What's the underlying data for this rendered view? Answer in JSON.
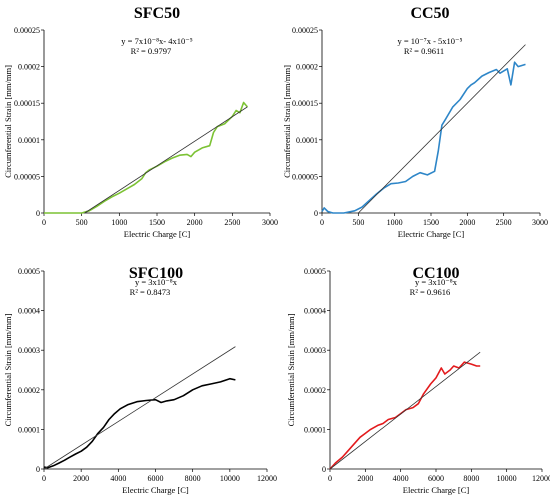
{
  "chart_data": [
    {
      "type": "line",
      "title": "SFC50",
      "equation": "y = 7x10⁻⁸x- 4x10⁻⁵",
      "r2": "R² = 0.9797",
      "xlabel": "Electric Charge [C]",
      "ylabel": "Circumferential Strain [mm/mm]",
      "xlim": [
        0,
        3000
      ],
      "ylim": [
        0,
        0.00025
      ],
      "xticks": [
        "0",
        "500",
        "1000",
        "1500",
        "2000",
        "2500",
        "3000"
      ],
      "yticks": [
        "0",
        "0.00005",
        "0.0001",
        "0.00015",
        "0.0002",
        "0.00025"
      ],
      "grid": false,
      "series_color": "#7cc234",
      "series": [
        {
          "x": [
            0,
            500,
            600,
            700,
            800,
            900,
            1000,
            1100,
            1200,
            1300,
            1350,
            1400,
            1500,
            1600,
            1700,
            1800,
            1900,
            1950,
            2000,
            2100,
            2200,
            2250,
            2300,
            2400,
            2500,
            2550,
            2600,
            2650,
            2700
          ],
          "y": [
            0,
            0,
            3e-06,
            9e-06,
            1.6e-05,
            2.2e-05,
            2.7e-05,
            3.3e-05,
            3.9e-05,
            4.7e-05,
            5.5e-05,
            5.9e-05,
            6.4e-05,
            7e-05,
            7.5e-05,
            7.9e-05,
            8e-05,
            7.7e-05,
            8.3e-05,
            8.9e-05,
            9.2e-05,
            0.00011,
            0.000118,
            0.000122,
            0.000132,
            0.00014,
            0.000137,
            0.000151,
            0.000145
          ]
        }
      ],
      "trendline": {
        "x": [
          540,
          2700
        ],
        "y": [
          0,
          0.000145
        ]
      }
    },
    {
      "type": "line",
      "title": "CC50",
      "equation": "y = 10⁻⁷x - 5x10⁻⁵",
      "r2": "R² = 0.9611",
      "xlabel": "Electric Charge [C]",
      "ylabel": "Circumferential Strain [mm/mm]",
      "xlim": [
        0,
        3000
      ],
      "ylim": [
        0,
        0.00025
      ],
      "xticks": [
        "0",
        "500",
        "1000",
        "1500",
        "2000",
        "2500",
        "3000"
      ],
      "yticks": [
        "0",
        "0.00005",
        "0.0001",
        "0.00015",
        "0.0002",
        "0.00025"
      ],
      "grid": false,
      "series_color": "#2e86c8",
      "series": [
        {
          "x": [
            0,
            30,
            80,
            150,
            300,
            450,
            550,
            650,
            750,
            850,
            950,
            1050,
            1150,
            1250,
            1350,
            1450,
            1550,
            1600,
            1650,
            1700,
            1800,
            1900,
            2000,
            2050,
            2100,
            2200,
            2300,
            2400,
            2450,
            2550,
            2600,
            2650,
            2700,
            2800
          ],
          "y": [
            2e-06,
            7e-06,
            2e-06,
            0,
            0,
            3e-06,
            8e-06,
            1.7e-05,
            2.6e-05,
            3.4e-05,
            4e-05,
            4.1e-05,
            4.3e-05,
            5e-05,
            5.5e-05,
            5.2e-05,
            5.7e-05,
            8.5e-05,
            0.00012,
            0.000128,
            0.000145,
            0.000155,
            0.00017,
            0.000175,
            0.000178,
            0.000187,
            0.000192,
            0.000196,
            0.000191,
            0.000197,
            0.000175,
            0.000206,
            0.0002,
            0.000203
          ]
        }
      ],
      "trendline": {
        "x": [
          500,
          2800
        ],
        "y": [
          0,
          0.00023
        ]
      }
    },
    {
      "type": "line",
      "title": "SFC100",
      "equation": "y = 3x10⁻⁸x",
      "r2": "R² = 0.8473",
      "xlabel": "Electric Charge [C]",
      "ylabel": "Circumferential Strain [mm/mm]",
      "xlim": [
        0,
        12000
      ],
      "ylim": [
        0,
        0.0005
      ],
      "xticks": [
        "0",
        "2000",
        "4000",
        "6000",
        "8000",
        "10000",
        "12000"
      ],
      "yticks": [
        "0",
        "0.0001",
        "0.0002",
        "0.0003",
        "0.0004",
        "0.0005"
      ],
      "grid": false,
      "series_color": "#000000",
      "series": [
        {
          "x": [
            0,
            200,
            500,
            800,
            1100,
            1400,
            1700,
            2000,
            2300,
            2600,
            2900,
            3200,
            3500,
            3800,
            4100,
            4500,
            5000,
            5500,
            6000,
            6300,
            6600,
            7000,
            7500,
            8000,
            8500,
            9000,
            9500,
            10000,
            10300
          ],
          "y": [
            5e-06,
            3e-06,
            8e-06,
            1.5e-05,
            2.2e-05,
            3e-05,
            3.8e-05,
            4.5e-05,
            5.5e-05,
            7e-05,
            9e-05,
            0.000105,
            0.000125,
            0.00014,
            0.000152,
            0.000162,
            0.00017,
            0.000173,
            0.000175,
            0.000168,
            0.000172,
            0.000175,
            0.000185,
            0.0002,
            0.00021,
            0.000215,
            0.00022,
            0.000228,
            0.000225
          ]
        }
      ],
      "trendline": {
        "x": [
          0,
          10300
        ],
        "y": [
          0,
          0.000309
        ]
      }
    },
    {
      "type": "line",
      "title": "CC100",
      "equation": "y = 3x10⁻⁸x",
      "r2": "R² = 0.9616",
      "xlabel": "Electric Charge [C]",
      "ylabel": "Circumferential Strain [mm/mm]",
      "xlim": [
        0,
        12000
      ],
      "ylim": [
        0,
        0.0005
      ],
      "xticks": [
        "0",
        "2000",
        "4000",
        "6000",
        "8000",
        "10000",
        "12000"
      ],
      "yticks": [
        "0",
        "0.0001",
        "0.0002",
        "0.0003",
        "0.0004",
        "0.0005"
      ],
      "grid": false,
      "series_color": "#e31a1c",
      "series": [
        {
          "x": [
            0,
            300,
            700,
            1000,
            1300,
            1700,
            2000,
            2300,
            2700,
            3000,
            3300,
            3700,
            4000,
            4300,
            4700,
            5000,
            5300,
            5700,
            6000,
            6300,
            6500,
            6800,
            7000,
            7300,
            7600,
            8000,
            8300,
            8500
          ],
          "y": [
            0,
            1.5e-05,
            3e-05,
            4.5e-05,
            6e-05,
            8e-05,
            9e-05,
            0.0001,
            0.00011,
            0.000115,
            0.000125,
            0.00013,
            0.00014,
            0.00015,
            0.000155,
            0.000165,
            0.00019,
            0.000215,
            0.00023,
            0.000255,
            0.00024,
            0.00025,
            0.00026,
            0.000255,
            0.00027,
            0.000265,
            0.00026,
            0.00026
          ]
        }
      ],
      "trendline": {
        "x": [
          0,
          8500
        ],
        "y": [
          0,
          0.000295
        ]
      }
    }
  ]
}
